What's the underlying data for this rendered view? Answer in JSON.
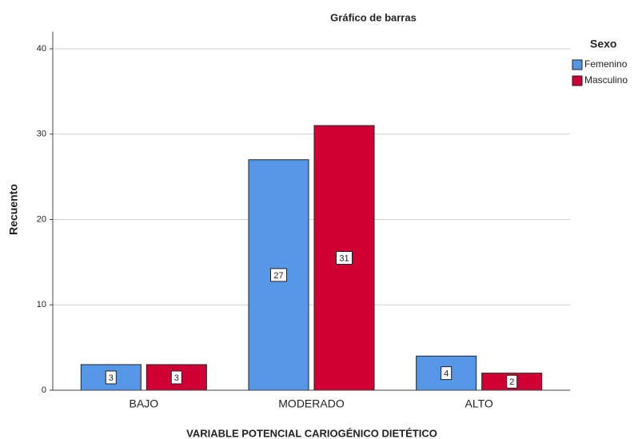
{
  "chart_data": {
    "type": "bar",
    "title": "Gráfico de barras",
    "x_label": "VARIABLE POTENCIAL CARIOGÉNICO DIETÉTICO",
    "y_label": "Recuento",
    "legend_title": "Sexo",
    "legend_position": "right",
    "grid": true,
    "categories": [
      "BAJO",
      "MODERADO",
      "ALTO"
    ],
    "series": [
      {
        "name": "Femenino",
        "color": "#5596e6",
        "values": [
          3,
          27,
          4
        ]
      },
      {
        "name": "Masculino",
        "color": "#d10034",
        "values": [
          3,
          31,
          2
        ]
      }
    ],
    "ylim": [
      0,
      42
    ],
    "yticks": [
      0,
      10,
      20,
      30,
      40
    ]
  }
}
